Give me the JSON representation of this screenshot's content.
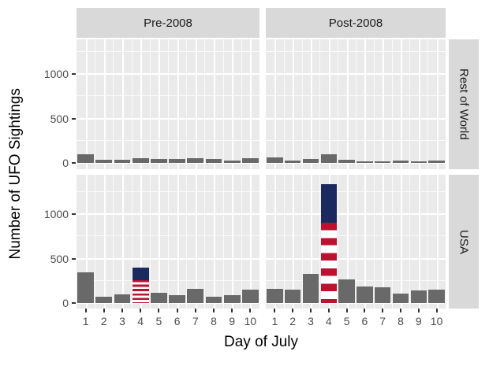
{
  "colors": {
    "bar_gray": "#696969",
    "flag_navy": "#1b2a5e",
    "flag_red": "#bc1230",
    "flag_white": "#ffffff",
    "panel_bg": "#eaeaea",
    "strip_bg": "#d9d9d9",
    "gridline": "#ffffff",
    "axis_text": "#4d4d4d",
    "tick_mark": "#333333"
  },
  "chart_data": {
    "type": "bar",
    "title": "",
    "xlabel": "Day of July",
    "ylabel": "Number of UFO Sightings",
    "facet_cols": [
      "Pre-2008",
      "Post-2008"
    ],
    "facet_rows": [
      "Rest of World",
      "USA"
    ],
    "categories": [
      1,
      2,
      3,
      4,
      5,
      6,
      7,
      8,
      9,
      10
    ],
    "y_major_gridlines": [
      0,
      500,
      1000
    ],
    "y_minor_gridlines": [
      250,
      750,
      1250
    ],
    "ylim": [
      -70,
      1420
    ],
    "grid": "on",
    "legend": "none",
    "panels": [
      {
        "row": "Rest of World",
        "col": "Pre-2008",
        "values": [
          95,
          35,
          35,
          50,
          45,
          45,
          55,
          40,
          30,
          50
        ]
      },
      {
        "row": "Rest of World",
        "col": "Post-2008",
        "values": [
          60,
          25,
          45,
          95,
          35,
          20,
          20,
          25,
          15,
          30
        ]
      },
      {
        "row": "USA",
        "col": "Pre-2008",
        "values": [
          345,
          70,
          100,
          400,
          115,
          85,
          160,
          70,
          90,
          150
        ],
        "flag_bar": {
          "category": 4,
          "total": 400,
          "blue_from": 260
        }
      },
      {
        "row": "USA",
        "col": "Post-2008",
        "values": [
          160,
          150,
          325,
          1340,
          265,
          190,
          175,
          110,
          140,
          155
        ],
        "flag_bar": {
          "category": 4,
          "total": 1340,
          "blue_from": 900
        }
      }
    ]
  }
}
